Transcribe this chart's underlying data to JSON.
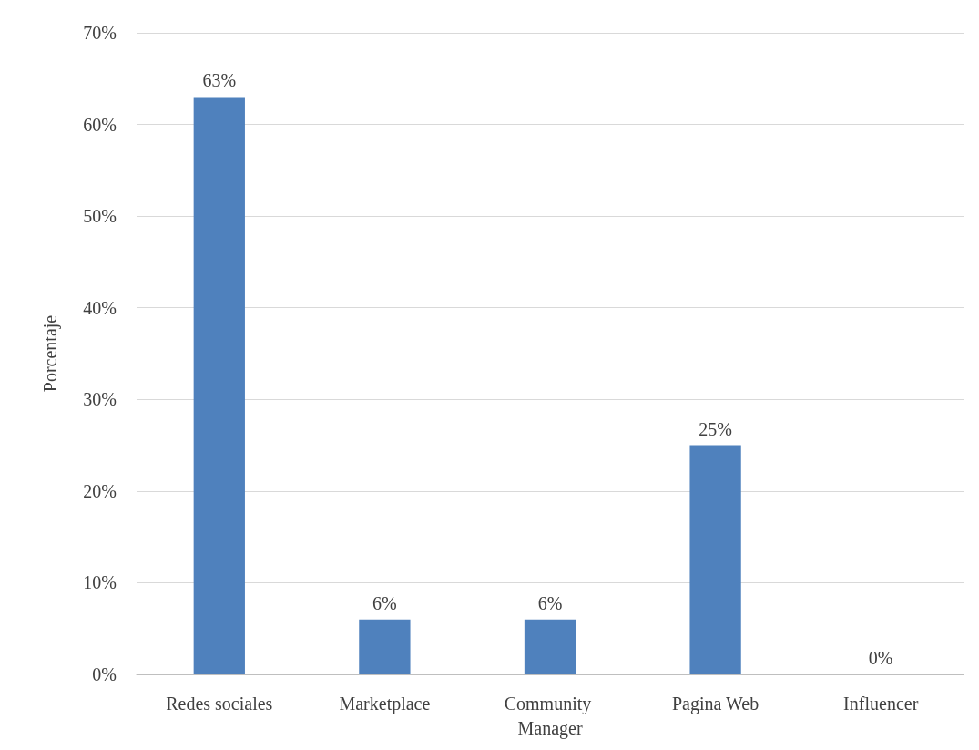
{
  "chart_data": {
    "type": "bar",
    "ylabel": "Porcentaje",
    "categories": [
      "Redes sociales",
      "Marketplace",
      "Community Manager",
      "Pagina Web",
      "Influencer"
    ],
    "values": [
      63,
      6,
      6,
      25,
      0
    ],
    "value_labels": [
      "63%",
      "6%",
      "6%",
      "25%",
      "0%"
    ],
    "color": "#4f81bd",
    "ylim": [
      0,
      70
    ],
    "yticks": [
      {
        "value": 0,
        "label": "0%"
      },
      {
        "value": 10,
        "label": "10%"
      },
      {
        "value": 20,
        "label": "20%"
      },
      {
        "value": 30,
        "label": "30%"
      },
      {
        "value": 40,
        "label": "40%"
      },
      {
        "value": 50,
        "label": "50%"
      },
      {
        "value": 60,
        "label": "60%"
      },
      {
        "value": 70,
        "label": "70%"
      }
    ],
    "grid": true
  }
}
